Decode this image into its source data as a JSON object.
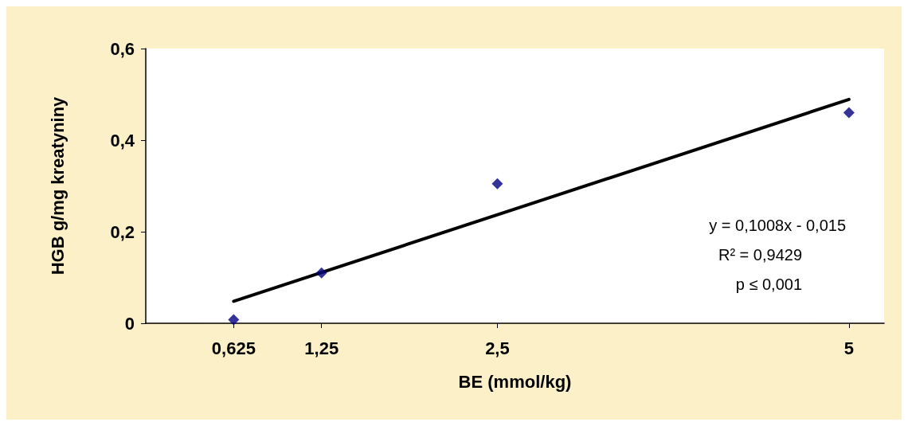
{
  "chart_data": {
    "type": "scatter",
    "xlabel": "BE (mmol/kg)",
    "ylabel": "HGB g/mg kreatyniny",
    "xlim": [
      0,
      5.25
    ],
    "xticks": [
      {
        "value": 0.625,
        "label": "0,625"
      },
      {
        "value": 1.25,
        "label": "1,25"
      },
      {
        "value": 2.5,
        "label": "2,5"
      },
      {
        "value": 5,
        "label": "5"
      }
    ],
    "ylim": [
      0,
      0.6
    ],
    "yticks": [
      0,
      {
        "value": 0.2,
        "label": "0,2"
      },
      {
        "value": 0.4,
        "label": "0,4"
      },
      {
        "value": 0.6,
        "label": "0,6"
      }
    ],
    "grid": false,
    "marker": "diamond",
    "series": [
      {
        "color": "#000080",
        "x": [
          0.625,
          1.25,
          2.5,
          5
        ],
        "values": [
          0.008,
          0.11,
          0.305,
          0.46
        ]
      },
      {
        "type": "line",
        "color": "#000000",
        "marker": "none",
        "x": [
          0.625,
          5
        ],
        "values": [
          0.048,
          0.489
        ]
      }
    ],
    "annotations": [
      "y = 0,1008x - 0,015",
      "R² = 0,9429",
      "p ≤ 0,001"
    ]
  }
}
